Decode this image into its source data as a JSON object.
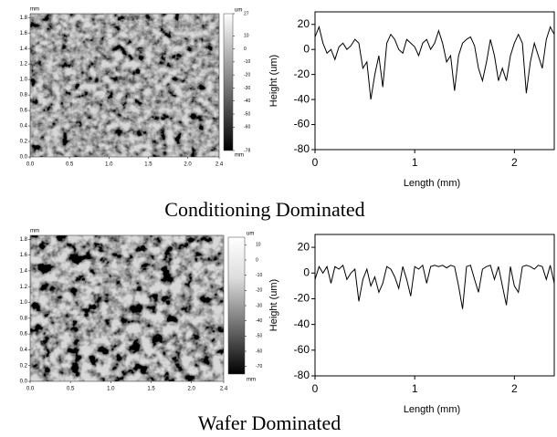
{
  "chart_data": [
    {
      "type": "image",
      "x_unit": "mm",
      "y_unit": "mm",
      "colorbar_unit": "um",
      "xlim": [
        0,
        2.4
      ],
      "ylim": [
        0,
        1.85
      ],
      "xticks": [
        {
          "value": 0,
          "label": "0.0"
        },
        0.5,
        {
          "value": 1,
          "label": "1.0"
        },
        1.5,
        {
          "value": 2,
          "label": "2.0"
        },
        2.4
      ],
      "yticks": [
        {
          "value": 0,
          "label": "0.0"
        },
        0.2,
        0.4,
        0.6,
        0.8,
        {
          "value": 1,
          "label": "1.0"
        },
        1.2,
        1.4,
        1.6,
        1.8
      ],
      "clim": [
        -78,
        27
      ],
      "cticks": [
        27,
        10,
        0,
        -10,
        -20,
        -30,
        -40,
        -50,
        -60,
        -78
      ]
    },
    {
      "type": "line",
      "xlabel": "Length (mm)",
      "ylabel": "Height (um)",
      "color": "#000000",
      "xlim": [
        0,
        2.4
      ],
      "ylim": [
        -80,
        30
      ],
      "xticks": [
        0,
        1,
        2
      ],
      "yticks": [
        20,
        0,
        -20,
        -40,
        -60,
        -80
      ],
      "x": [
        0,
        0.04,
        0.08,
        0.12,
        0.16,
        0.2,
        0.24,
        0.28,
        0.32,
        0.36,
        0.4,
        0.44,
        0.48,
        0.52,
        0.56,
        0.6,
        0.64,
        0.68,
        0.72,
        0.76,
        0.8,
        0.84,
        0.88,
        0.92,
        0.96,
        1,
        1.04,
        1.08,
        1.12,
        1.16,
        1.2,
        1.24,
        1.28,
        1.32,
        1.36,
        1.4,
        1.44,
        1.48,
        1.52,
        1.56,
        1.6,
        1.64,
        1.68,
        1.72,
        1.76,
        1.8,
        1.84,
        1.88,
        1.92,
        1.96,
        2,
        2.04,
        2.08,
        2.12,
        2.16,
        2.2,
        2.24,
        2.28,
        2.32,
        2.36,
        2.4
      ],
      "values": [
        10,
        18,
        5,
        -3,
        0,
        -8,
        2,
        5,
        0,
        3,
        8,
        5,
        -15,
        -10,
        -40,
        -20,
        -5,
        -30,
        5,
        12,
        8,
        0,
        -3,
        8,
        5,
        2,
        -5,
        5,
        8,
        0,
        5,
        15,
        5,
        -10,
        -5,
        -33,
        -5,
        5,
        8,
        10,
        3,
        -15,
        -25,
        -10,
        8,
        -5,
        -25,
        -15,
        -25,
        -5,
        5,
        12,
        5,
        -35,
        -10,
        5,
        -5,
        -15,
        8,
        18,
        12
      ]
    },
    {
      "type": "image",
      "x_unit": "mm",
      "y_unit": "mm",
      "colorbar_unit": "um",
      "xlim": [
        0,
        2.4
      ],
      "ylim": [
        0,
        1.85
      ],
      "xticks": [
        {
          "value": 0,
          "label": "0.0"
        },
        0.5,
        {
          "value": 1,
          "label": "1.0"
        },
        1.5,
        {
          "value": 2,
          "label": "2.0"
        },
        2.4
      ],
      "yticks": [
        {
          "value": 0,
          "label": "0.0"
        },
        0.2,
        0.4,
        0.6,
        0.8,
        {
          "value": 1,
          "label": "1.0"
        },
        1.2,
        1.4,
        1.6,
        1.8
      ],
      "clim": [
        -75,
        15
      ],
      "cticks": [
        10,
        0,
        -10,
        -20,
        -30,
        -40,
        -50,
        -60,
        -70
      ]
    },
    {
      "type": "line",
      "xlabel": "Length (mm)",
      "ylabel": "Height (um)",
      "color": "#000000",
      "xlim": [
        0,
        2.4
      ],
      "ylim": [
        -80,
        30
      ],
      "xticks": [
        0,
        1,
        2
      ],
      "yticks": [
        20,
        0,
        -20,
        -40,
        -60,
        -80
      ],
      "x": [
        0,
        0.04,
        0.08,
        0.12,
        0.16,
        0.2,
        0.24,
        0.28,
        0.32,
        0.36,
        0.4,
        0.44,
        0.48,
        0.52,
        0.56,
        0.6,
        0.64,
        0.68,
        0.72,
        0.76,
        0.8,
        0.84,
        0.88,
        0.92,
        0.96,
        1,
        1.04,
        1.08,
        1.12,
        1.16,
        1.2,
        1.24,
        1.28,
        1.32,
        1.36,
        1.4,
        1.44,
        1.48,
        1.52,
        1.56,
        1.6,
        1.64,
        1.68,
        1.72,
        1.76,
        1.8,
        1.84,
        1.88,
        1.92,
        1.96,
        2,
        2.04,
        2.08,
        2.12,
        2.16,
        2.2,
        2.24,
        2.28,
        2.32,
        2.36,
        2.4
      ],
      "values": [
        -5,
        5,
        0,
        5,
        -8,
        5,
        3,
        6,
        -5,
        0,
        3,
        -22,
        -5,
        3,
        -10,
        -3,
        -15,
        -8,
        5,
        3,
        -3,
        -12,
        5,
        -5,
        -18,
        5,
        3,
        6,
        -8,
        5,
        6,
        5,
        6,
        4,
        6,
        5,
        -10,
        -28,
        5,
        6,
        -5,
        -15,
        3,
        5,
        6,
        -5,
        5,
        -10,
        -25,
        5,
        -10,
        -15,
        5,
        6,
        5,
        3,
        6,
        5,
        -5,
        6,
        -8
      ]
    }
  ],
  "captions": [
    "Conditioning Dominated",
    "Wafer Dominated"
  ]
}
